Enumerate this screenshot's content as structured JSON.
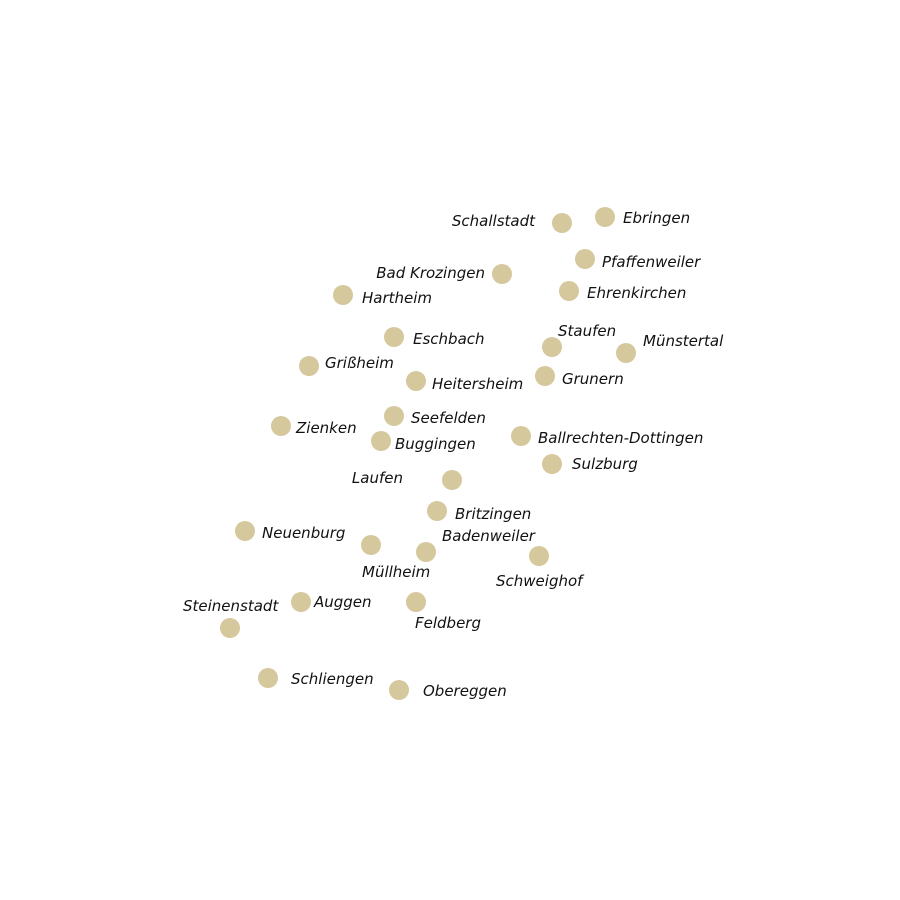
{
  "map": {
    "dot_color": "#d6c89d",
    "label_color": "#111111",
    "towns": [
      {
        "name": "Schallstadt"
      },
      {
        "name": "Ebringen"
      },
      {
        "name": "Pfaffenweiler"
      },
      {
        "name": "Bad Krozingen"
      },
      {
        "name": "Ehrenkirchen"
      },
      {
        "name": "Hartheim"
      },
      {
        "name": "Eschbach"
      },
      {
        "name": "Staufen"
      },
      {
        "name": "Münstertal"
      },
      {
        "name": "Grißheim"
      },
      {
        "name": "Grunern"
      },
      {
        "name": "Heitersheim"
      },
      {
        "name": "Seefelden"
      },
      {
        "name": "Zienken"
      },
      {
        "name": "Ballrechten-Dottingen"
      },
      {
        "name": "Buggingen"
      },
      {
        "name": "Sulzburg"
      },
      {
        "name": "Laufen"
      },
      {
        "name": "Britzingen"
      },
      {
        "name": "Neuenburg"
      },
      {
        "name": "Badenweiler"
      },
      {
        "name": "Müllheim"
      },
      {
        "name": "Schweighof"
      },
      {
        "name": "Steinenstadt"
      },
      {
        "name": "Auggen"
      },
      {
        "name": "Feldberg"
      },
      {
        "name": "Schliengen"
      },
      {
        "name": "Obereggen"
      }
    ]
  }
}
